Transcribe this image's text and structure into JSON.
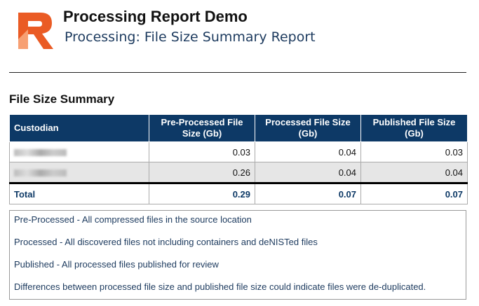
{
  "header": {
    "title": "Processing Report Demo",
    "subtitle": "Processing: File Size Summary Report"
  },
  "section_title": "File Size Summary",
  "table": {
    "columns": [
      "Custodian",
      "Pre-Processed File Size (Gb)",
      "Processed File Size (Gb)",
      "Published File Size (Gb)"
    ],
    "rows": [
      {
        "values": [
          0.03,
          0.04,
          0.03
        ]
      },
      {
        "values": [
          0.26,
          0.04,
          0.04
        ]
      }
    ],
    "total": {
      "label": "Total",
      "values": [
        0.29,
        0.07,
        0.07
      ]
    }
  },
  "notes": [
    "Pre-Processed - All compressed files in the source location",
    "Processed - All discovered files not including containers and deNISTed files",
    "Published - All processed files published for review",
    "Differences between processed file size and published file size could indicate files were de-duplicated."
  ]
}
